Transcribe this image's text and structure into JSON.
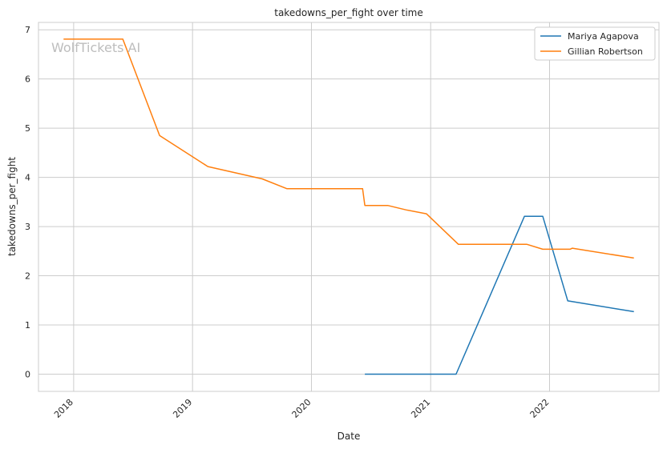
{
  "watermark": "WolfTickets AI",
  "chart_data": {
    "type": "line",
    "title": "takedowns_per_fight over time",
    "xlabel": "Date",
    "ylabel": "takedowns_per_fight",
    "x_tick_labels": [
      "2018",
      "2019",
      "2020",
      "2021",
      "2022"
    ],
    "x_ticks": [
      "2018-01-01",
      "2019-01-01",
      "2020-01-01",
      "2021-01-01",
      "2022-01-01"
    ],
    "y_ticks": [
      0,
      1,
      2,
      3,
      4,
      5,
      6,
      7
    ],
    "xlim": [
      "2017-09-15",
      "2022-12-03"
    ],
    "ylim": [
      -0.35,
      7.15
    ],
    "grid": true,
    "legend_position": "top-right",
    "series": [
      {
        "name": "Mariya Agapova",
        "color": "#1f77b4",
        "points": [
          [
            "2020-06-13",
            0.0
          ],
          [
            "2021-03-20",
            0.0
          ],
          [
            "2021-10-16",
            3.21
          ],
          [
            "2021-12-11",
            3.21
          ],
          [
            "2022-02-26",
            1.49
          ],
          [
            "2022-09-17",
            1.27
          ]
        ]
      },
      {
        "name": "Gillian Robertson",
        "color": "#ff7f0e",
        "points": [
          [
            "2017-12-01",
            6.81
          ],
          [
            "2018-06-01",
            6.81
          ],
          [
            "2018-09-22",
            4.85
          ],
          [
            "2019-02-17",
            4.22
          ],
          [
            "2019-08-03",
            3.97
          ],
          [
            "2019-10-18",
            3.77
          ],
          [
            "2020-06-06",
            3.77
          ],
          [
            "2020-06-13",
            3.43
          ],
          [
            "2020-08-22",
            3.43
          ],
          [
            "2020-10-17",
            3.34
          ],
          [
            "2020-12-19",
            3.26
          ],
          [
            "2021-03-27",
            2.64
          ],
          [
            "2021-10-23",
            2.64
          ],
          [
            "2021-12-11",
            2.54
          ],
          [
            "2022-03-05",
            2.54
          ],
          [
            "2022-03-12",
            2.56
          ],
          [
            "2022-09-17",
            2.36
          ]
        ]
      }
    ]
  }
}
